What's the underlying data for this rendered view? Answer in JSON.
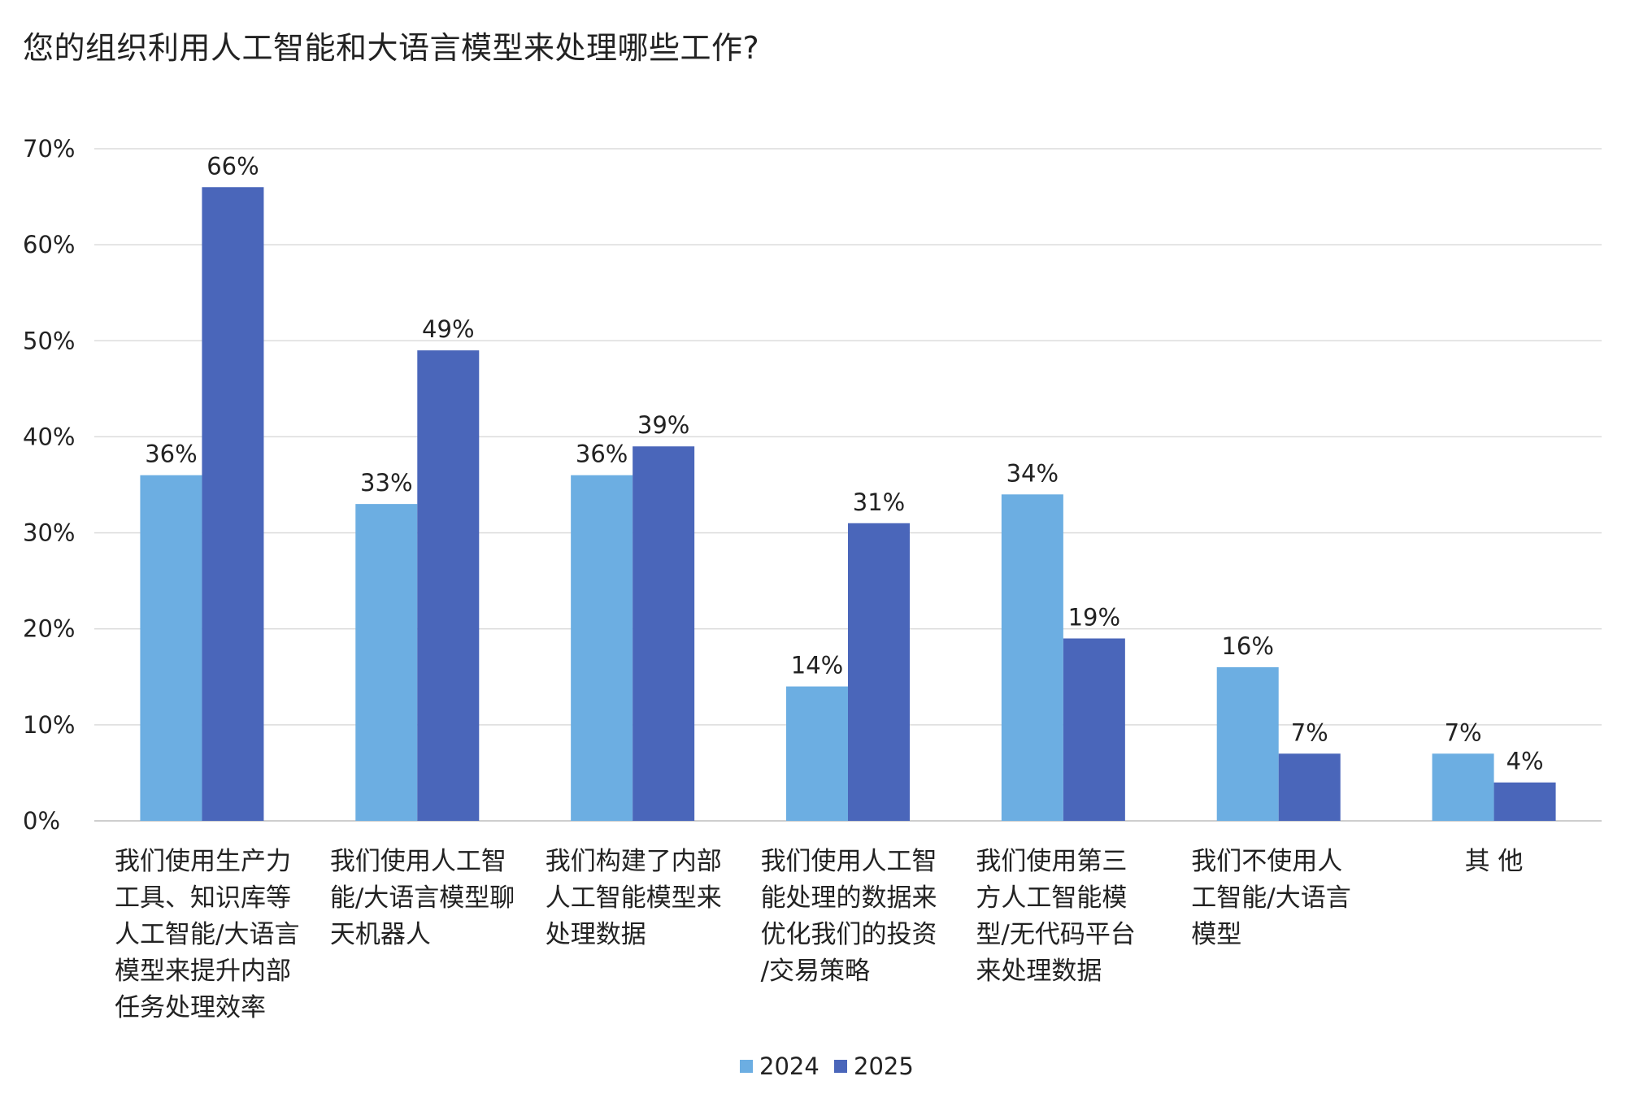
{
  "chart_data": {
    "type": "bar",
    "title": "您的组织利用人工智能和大语言模型来处理哪些工作?",
    "categories": [
      [
        "我们使用生产力",
        "工具、知识库等",
        "人工智能/大语言",
        "模型来提升内部",
        "任务处理效率"
      ],
      [
        "我们使用人工智",
        "能/大语言模型聊",
        "天机器人"
      ],
      [
        "我们构建了内部",
        "人工智能模型来",
        "处理数据"
      ],
      [
        "我们使用人工智",
        "能处理的数据来",
        "优化我们的投资",
        "/交易策略"
      ],
      [
        "我们使用第三",
        "方人工智能模",
        "型/无代码平台",
        "来处理数据"
      ],
      [
        "我们不使用人",
        "工智能/大语言",
        "模型"
      ],
      [
        "其  他"
      ]
    ],
    "series": [
      {
        "name": "2024",
        "color": "#6caee2",
        "values": [
          36,
          33,
          36,
          14,
          34,
          16,
          7
        ],
        "labels": [
          "36%",
          "33%",
          "36%",
          "14%",
          "34%",
          "16%",
          "7%"
        ]
      },
      {
        "name": "2025",
        "color": "#4a66ba",
        "values": [
          66,
          49,
          39,
          31,
          19,
          7,
          4
        ],
        "labels": [
          "66%",
          "49%",
          "39%",
          "31%",
          "19%",
          "7%",
          "4%"
        ]
      }
    ],
    "y_ticks": [
      "0%",
      "10%",
      "20%",
      "30%",
      "40%",
      "50%",
      "60%",
      "70%"
    ],
    "ylim": [
      0,
      70
    ],
    "grid": true,
    "legend_position": "bottom-center",
    "xlabel": "",
    "ylabel": ""
  }
}
